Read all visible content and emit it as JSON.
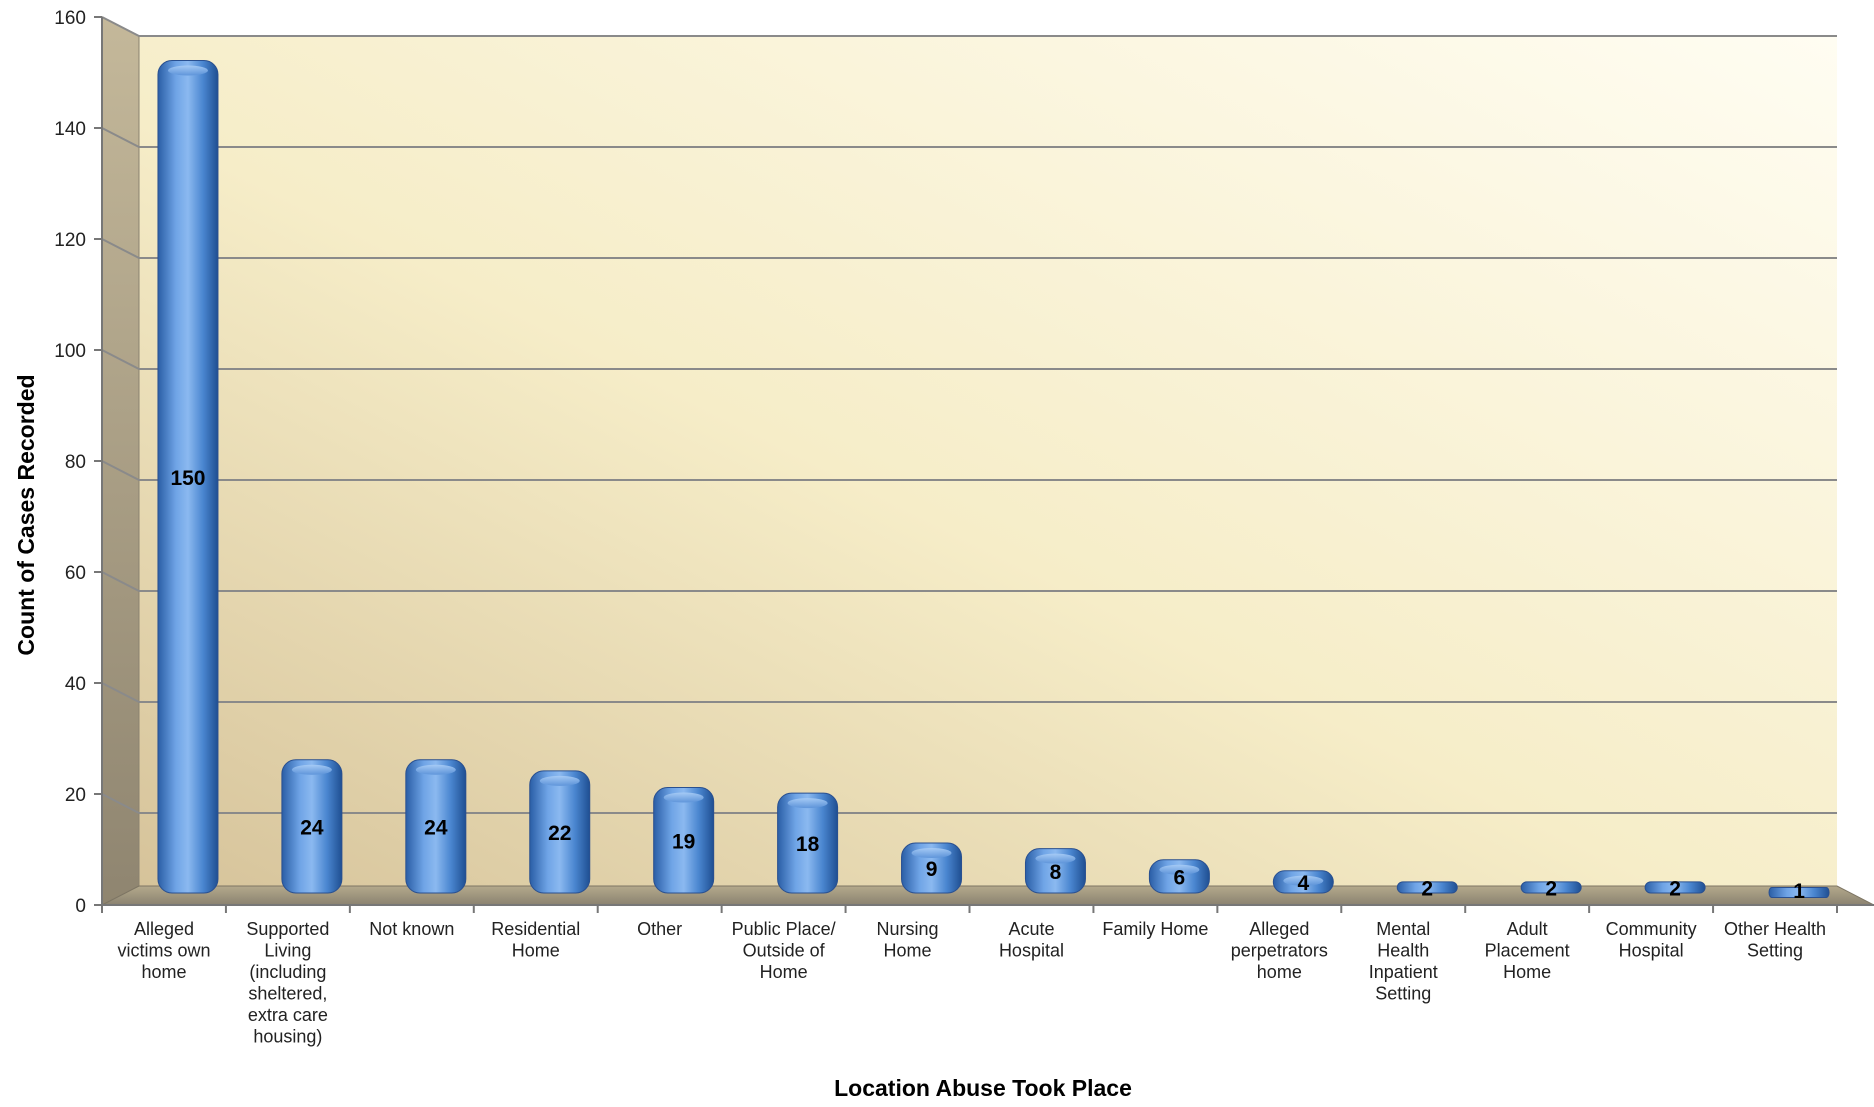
{
  "chart_data": {
    "type": "bar",
    "title": "",
    "xlabel": "Location Abuse Took Place",
    "ylabel": "Count of Cases Recorded",
    "ylim": [
      0,
      160
    ],
    "yticks": [
      0,
      20,
      40,
      60,
      80,
      100,
      120,
      140,
      160
    ],
    "grid": true,
    "legend": "none",
    "bar_color": "#4a86d0",
    "categories": [
      [
        "Alleged",
        "victims own",
        "home"
      ],
      [
        "Supported",
        "Living",
        "(including",
        "sheltered,",
        "extra care",
        "housing)"
      ],
      [
        "Not known"
      ],
      [
        "Residential",
        "Home"
      ],
      [
        "Other"
      ],
      [
        "Public Place/",
        "Outside of",
        "Home"
      ],
      [
        "Nursing",
        "Home"
      ],
      [
        "Acute",
        "Hospital"
      ],
      [
        "Family Home"
      ],
      [
        "Alleged",
        "perpetrators",
        "home"
      ],
      [
        "Mental",
        "Health",
        "Inpatient",
        "Setting"
      ],
      [
        "Adult",
        "Placement",
        "Home"
      ],
      [
        "Community",
        "Hospital"
      ],
      [
        "Other Health",
        "Setting"
      ]
    ],
    "values": [
      150,
      24,
      24,
      22,
      19,
      18,
      9,
      8,
      6,
      4,
      2,
      2,
      2,
      1
    ],
    "data_labels": [
      "150",
      "24",
      "24",
      "22",
      "19",
      "18",
      "9",
      "8",
      "6",
      "4",
      "2",
      "2",
      "2",
      "1"
    ]
  }
}
